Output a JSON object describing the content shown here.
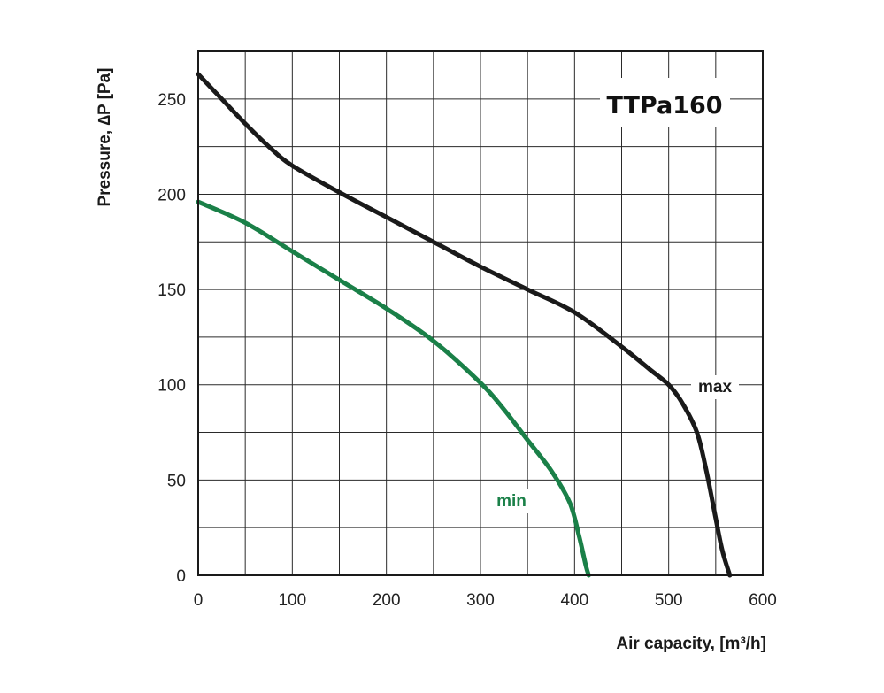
{
  "chart_data": {
    "type": "line",
    "title": "TTPa160",
    "xlabel": "Air capacity, [m³/h]",
    "ylabel": "Pressure, ∆P [Pa]",
    "xlim": [
      0,
      600
    ],
    "ylim": [
      0,
      275
    ],
    "x_ticks": [
      0,
      100,
      200,
      300,
      400,
      500,
      600
    ],
    "y_ticks": [
      0,
      50,
      100,
      150,
      200,
      250
    ],
    "grid": true,
    "grid_x_step": 50,
    "grid_y_step": 25,
    "series": [
      {
        "name": "max",
        "color": "#1a1a1a",
        "points": [
          [
            0,
            263
          ],
          [
            25,
            250
          ],
          [
            50,
            237
          ],
          [
            75,
            225
          ],
          [
            100,
            215
          ],
          [
            150,
            201
          ],
          [
            200,
            188
          ],
          [
            250,
            175
          ],
          [
            300,
            162
          ],
          [
            350,
            150
          ],
          [
            400,
            138
          ],
          [
            450,
            120
          ],
          [
            480,
            108
          ],
          [
            500,
            100
          ],
          [
            515,
            90
          ],
          [
            530,
            75
          ],
          [
            540,
            55
          ],
          [
            550,
            30
          ],
          [
            557,
            13
          ],
          [
            565,
            0
          ]
        ]
      },
      {
        "name": "min",
        "color": "#1a8048",
        "points": [
          [
            0,
            196
          ],
          [
            50,
            185
          ],
          [
            100,
            170
          ],
          [
            150,
            155
          ],
          [
            200,
            140
          ],
          [
            250,
            123
          ],
          [
            300,
            101
          ],
          [
            325,
            87
          ],
          [
            350,
            71
          ],
          [
            375,
            55
          ],
          [
            395,
            38
          ],
          [
            405,
            20
          ],
          [
            412,
            5
          ],
          [
            415,
            0
          ]
        ]
      }
    ]
  }
}
